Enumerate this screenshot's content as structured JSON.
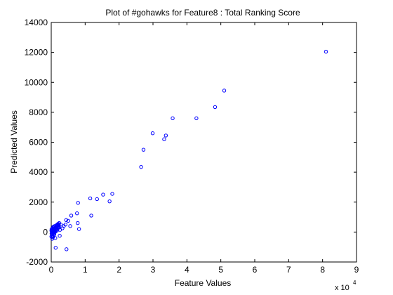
{
  "chart_data": {
    "type": "scatter",
    "title": "Plot of #gohawks for Feature8 : Total Ranking Score",
    "xlabel": "Feature Values",
    "ylabel": "Predicted Values",
    "xlim": [
      0,
      90000
    ],
    "ylim": [
      -2000,
      14000
    ],
    "x_ticks": [
      0,
      10000,
      20000,
      30000,
      40000,
      50000,
      60000,
      70000,
      80000,
      90000
    ],
    "x_tick_labels": [
      "0",
      "1",
      "2",
      "3",
      "4",
      "5",
      "6",
      "7",
      "8",
      "9"
    ],
    "x_multiplier": {
      "base": "x 10",
      "exponent": "4"
    },
    "y_ticks": [
      -2000,
      0,
      2000,
      4000,
      6000,
      8000,
      10000,
      12000,
      14000
    ],
    "y_tick_labels": [
      "-2000",
      "0",
      "2000",
      "4000",
      "6000",
      "8000",
      "10000",
      "12000",
      "14000"
    ],
    "grid": false,
    "marker_color": "#0000ff",
    "marker": "circle-open",
    "points": [
      [
        81000,
        12050
      ],
      [
        51000,
        9450
      ],
      [
        48300,
        8350
      ],
      [
        42800,
        7600
      ],
      [
        35800,
        7600
      ],
      [
        33800,
        6450
      ],
      [
        33300,
        6200
      ],
      [
        29900,
        6600
      ],
      [
        27200,
        5500
      ],
      [
        26500,
        4350
      ],
      [
        18000,
        2550
      ],
      [
        17200,
        2050
      ],
      [
        15300,
        2500
      ],
      [
        13500,
        2200
      ],
      [
        11500,
        2250
      ],
      [
        11800,
        1100
      ],
      [
        7900,
        1950
      ],
      [
        7600,
        1250
      ],
      [
        7800,
        600
      ],
      [
        8200,
        200
      ],
      [
        5900,
        1100
      ],
      [
        5000,
        750
      ],
      [
        4400,
        800
      ],
      [
        4200,
        500
      ],
      [
        5600,
        400
      ],
      [
        3700,
        400
      ],
      [
        3300,
        250
      ],
      [
        2800,
        500
      ],
      [
        2600,
        150
      ],
      [
        2500,
        -250
      ],
      [
        4500,
        -1150
      ],
      [
        1700,
        100
      ],
      [
        1300,
        -1050
      ],
      [
        1200,
        -400
      ],
      [
        1000,
        400
      ],
      [
        900,
        300
      ],
      [
        800,
        200
      ],
      [
        700,
        100
      ],
      [
        600,
        0
      ],
      [
        500,
        -100
      ],
      [
        400,
        -250
      ],
      [
        300,
        -300
      ],
      [
        200,
        -150
      ],
      [
        150,
        50
      ],
      [
        100,
        200
      ],
      [
        250,
        150
      ],
      [
        350,
        100
      ],
      [
        450,
        250
      ],
      [
        550,
        300
      ],
      [
        650,
        200
      ],
      [
        750,
        350
      ],
      [
        850,
        0
      ],
      [
        950,
        -50
      ],
      [
        1050,
        100
      ],
      [
        1150,
        250
      ],
      [
        1250,
        200
      ],
      [
        1350,
        300
      ],
      [
        1450,
        400
      ],
      [
        1550,
        350
      ],
      [
        1650,
        450
      ],
      [
        1750,
        500
      ],
      [
        1850,
        400
      ],
      [
        1950,
        450
      ],
      [
        2050,
        550
      ],
      [
        2150,
        500
      ],
      [
        2250,
        450
      ],
      [
        2350,
        600
      ],
      [
        1900,
        300
      ],
      [
        1600,
        250
      ],
      [
        1400,
        150
      ],
      [
        1100,
        0
      ],
      [
        700,
        -200
      ],
      [
        500,
        -350
      ],
      [
        300,
        -450
      ],
      [
        200,
        0
      ],
      [
        100,
        -100
      ],
      [
        50,
        100
      ],
      [
        50,
        -300
      ],
      [
        600,
        350
      ],
      [
        900,
        -150
      ],
      [
        1300,
        50
      ],
      [
        1800,
        200
      ],
      [
        2100,
        350
      ],
      [
        2300,
        300
      ]
    ]
  }
}
